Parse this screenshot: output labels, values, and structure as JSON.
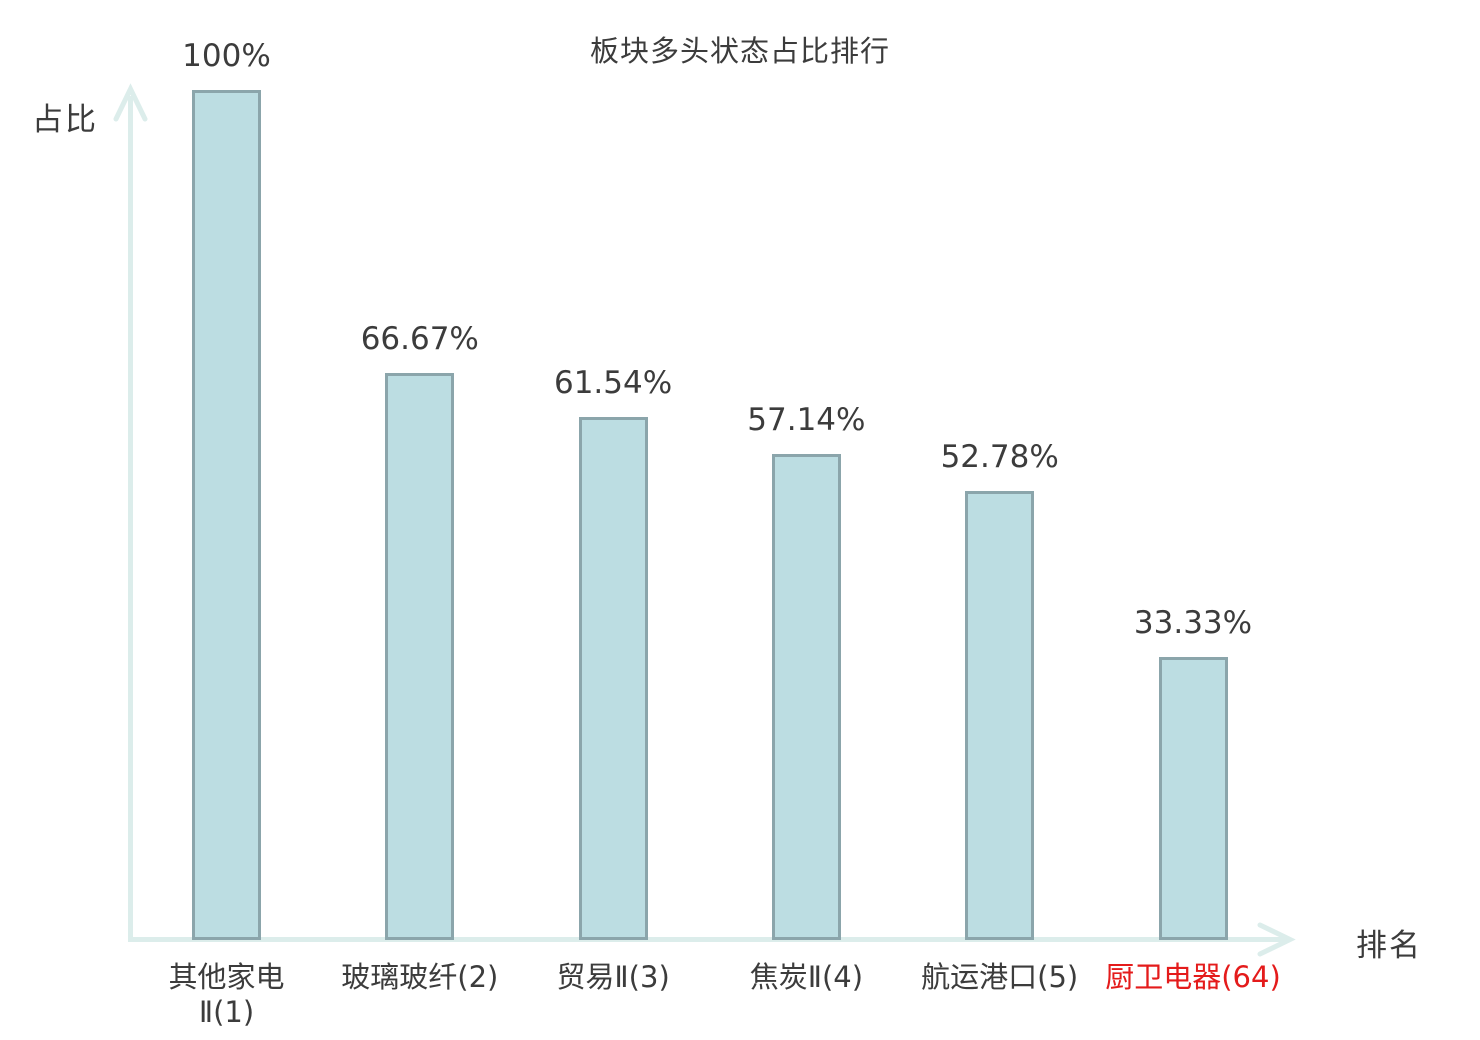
{
  "chart_data": {
    "type": "bar",
    "title": "板块多头状态占比排行",
    "xlabel": "排名",
    "ylabel": "占比",
    "categories": [
      "其他家电Ⅱ(1)",
      "玻璃玻纤(2)",
      "贸易Ⅱ(3)",
      "焦炭Ⅱ(4)",
      "航运港口(5)",
      "厨卫电器(64)"
    ],
    "category_lines": [
      [
        "其他家电",
        "Ⅱ(1)"
      ],
      [
        "玻璃玻纤(2)"
      ],
      [
        "贸易Ⅱ(3)"
      ],
      [
        "焦炭Ⅱ(4)"
      ],
      [
        "航运港口(5)"
      ],
      [
        "厨卫电器(64)"
      ]
    ],
    "values": [
      100,
      66.67,
      61.54,
      57.14,
      52.78,
      33.33
    ],
    "value_labels": [
      "100%",
      "66.67%",
      "61.54%",
      "57.14%",
      "52.78%",
      "33.33%"
    ],
    "highlighted_category_index": 5,
    "ylim": [
      0,
      100
    ],
    "grid": false,
    "legend": null,
    "colors": {
      "bar_fill": "#bcdde2",
      "bar_border": "#8ba5ab",
      "axis": "#dcedeb",
      "text": "#3c3c3c",
      "highlight": "#e41b1b",
      "background": "#ffffff"
    }
  }
}
